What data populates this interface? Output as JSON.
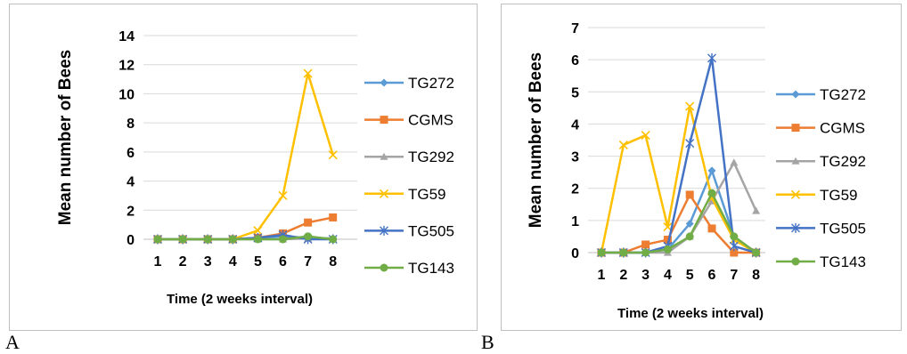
{
  "chart_data": [
    {
      "type": "line",
      "panel_label": "A",
      "xlabel": "Time (2 weeks interval)",
      "ylabel": "Mean number of Bees",
      "x": [
        1,
        2,
        3,
        4,
        5,
        6,
        7,
        8
      ],
      "ylim": [
        0,
        14
      ],
      "yticks": [
        0,
        2,
        4,
        6,
        8,
        10,
        12,
        14
      ],
      "grid": true,
      "legend_position": "right",
      "series": [
        {
          "name": "TG272",
          "color": "#5b9bd5",
          "marker": "diamond",
          "values": [
            0,
            0,
            0,
            0,
            0.1,
            0.2,
            0.1,
            0.05
          ]
        },
        {
          "name": "CGMS",
          "color": "#ed7d31",
          "marker": "square",
          "values": [
            0,
            0,
            0,
            0,
            0.1,
            0.4,
            1.15,
            1.5
          ]
        },
        {
          "name": "TG292",
          "color": "#a5a5a5",
          "marker": "triangle",
          "values": [
            0,
            0,
            0,
            0,
            0,
            0,
            0.05,
            0.05
          ]
        },
        {
          "name": "TG59",
          "color": "#ffc000",
          "marker": "x",
          "values": [
            0,
            0,
            0,
            0,
            0.6,
            3.0,
            11.4,
            5.8
          ]
        },
        {
          "name": "TG505",
          "color": "#4472c4",
          "marker": "star",
          "values": [
            0,
            0,
            0,
            0,
            0.1,
            0.3,
            0,
            0
          ]
        },
        {
          "name": "TG143",
          "color": "#70ad47",
          "marker": "circle",
          "values": [
            0,
            0,
            0,
            0,
            0,
            0,
            0.2,
            0
          ]
        }
      ]
    },
    {
      "type": "line",
      "panel_label": "B",
      "xlabel": "Time (2 weeks interval)",
      "ylabel": "Mean number of Bees",
      "x": [
        1,
        2,
        3,
        4,
        5,
        6,
        7,
        8
      ],
      "ylim": [
        0,
        7
      ],
      "yticks": [
        0,
        1,
        2,
        3,
        4,
        5,
        6,
        7
      ],
      "grid": true,
      "legend_position": "right",
      "series": [
        {
          "name": "TG272",
          "color": "#5b9bd5",
          "marker": "diamond",
          "values": [
            0,
            0,
            0,
            0.1,
            0.9,
            2.55,
            0.5,
            0
          ]
        },
        {
          "name": "CGMS",
          "color": "#ed7d31",
          "marker": "square",
          "values": [
            0,
            0,
            0.25,
            0.4,
            1.8,
            0.75,
            0,
            0
          ]
        },
        {
          "name": "TG292",
          "color": "#a5a5a5",
          "marker": "triangle",
          "values": [
            0,
            0,
            0,
            0,
            0.5,
            1.6,
            2.8,
            1.3
          ]
        },
        {
          "name": "TG59",
          "color": "#ffc000",
          "marker": "x",
          "values": [
            0,
            3.35,
            3.65,
            0.8,
            4.55,
            1.7,
            0.4,
            0
          ]
        },
        {
          "name": "TG505",
          "color": "#4472c4",
          "marker": "star",
          "values": [
            0,
            0,
            0,
            0.2,
            3.4,
            6.05,
            0.2,
            0
          ]
        },
        {
          "name": "TG143",
          "color": "#70ad47",
          "marker": "circle",
          "values": [
            0,
            0,
            0,
            0.1,
            0.5,
            1.85,
            0.5,
            0
          ]
        }
      ]
    }
  ]
}
